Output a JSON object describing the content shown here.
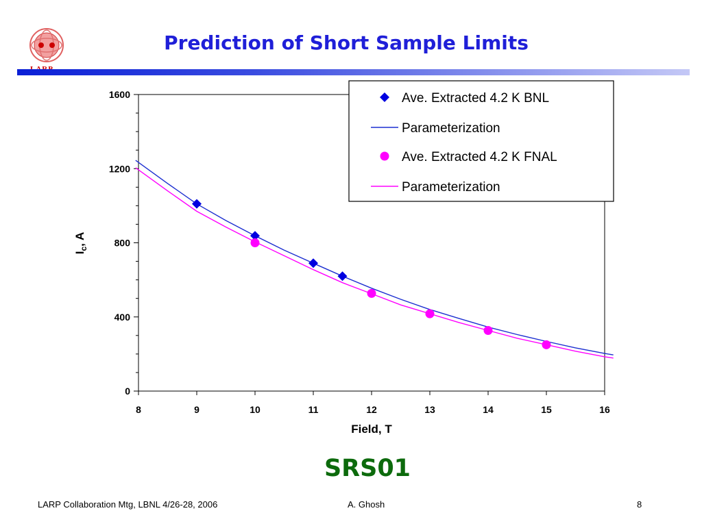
{
  "slide": {
    "title": "Prediction of Short Sample Limits",
    "label": "SRS01",
    "logo_text": "LARP",
    "footer": {
      "left": "LARP Collaboration Mtg, LBNL 4/26-28, 2006",
      "center": "A. Ghosh",
      "right": "8"
    }
  },
  "colors": {
    "title": "#1f1fd8",
    "label": "#0c6a0c",
    "bnl": "#0000e0",
    "fnal": "#ff00ff"
  },
  "chart_data": {
    "type": "scatter",
    "xlabel": "Field, T",
    "ylabel_main": "I",
    "ylabel_sub": "c",
    "ylabel_rest": ", A",
    "xlim": [
      8,
      16
    ],
    "ylim": [
      0,
      1600
    ],
    "x_ticks": [
      8,
      9,
      10,
      11,
      12,
      13,
      14,
      15,
      16
    ],
    "y_ticks": [
      0,
      400,
      800,
      1200,
      1600
    ],
    "legend_position": "top-right",
    "series": [
      {
        "name": "Ave. Extracted 4.2 K BNL",
        "kind": "points",
        "marker": "diamond",
        "color": "#0000e0",
        "x": [
          9,
          10,
          11,
          11.5
        ],
        "y": [
          1010,
          838,
          690,
          620
        ]
      },
      {
        "name": "Parameterization",
        "kind": "line",
        "color": "#1c2fd0",
        "x": [
          7.95,
          8.5,
          9,
          9.5,
          10,
          10.5,
          11,
          11.5,
          12,
          12.5,
          13,
          13.5,
          14,
          14.5,
          15,
          15.5,
          16,
          16.15
        ],
        "y": [
          1245,
          1120,
          1010,
          920,
          838,
          760,
          690,
          620,
          555,
          495,
          440,
          392,
          345,
          305,
          268,
          233,
          203,
          195
        ]
      },
      {
        "name": "Ave. Extracted 4.2 K FNAL",
        "kind": "points",
        "marker": "circle",
        "color": "#ff00ff",
        "x": [
          10,
          12,
          13,
          14,
          15
        ],
        "y": [
          800,
          527,
          417,
          327,
          250
        ]
      },
      {
        "name": "Parameterization",
        "kind": "line",
        "color": "#ff00ff",
        "x": [
          7.95,
          8.5,
          9,
          9.5,
          10,
          10.5,
          11,
          11.5,
          12,
          12.5,
          13,
          13.5,
          14,
          14.5,
          15,
          15.5,
          16,
          16.15
        ],
        "y": [
          1205,
          1080,
          970,
          885,
          805,
          730,
          655,
          585,
          525,
          465,
          417,
          370,
          327,
          285,
          250,
          215,
          185,
          178
        ]
      }
    ]
  }
}
